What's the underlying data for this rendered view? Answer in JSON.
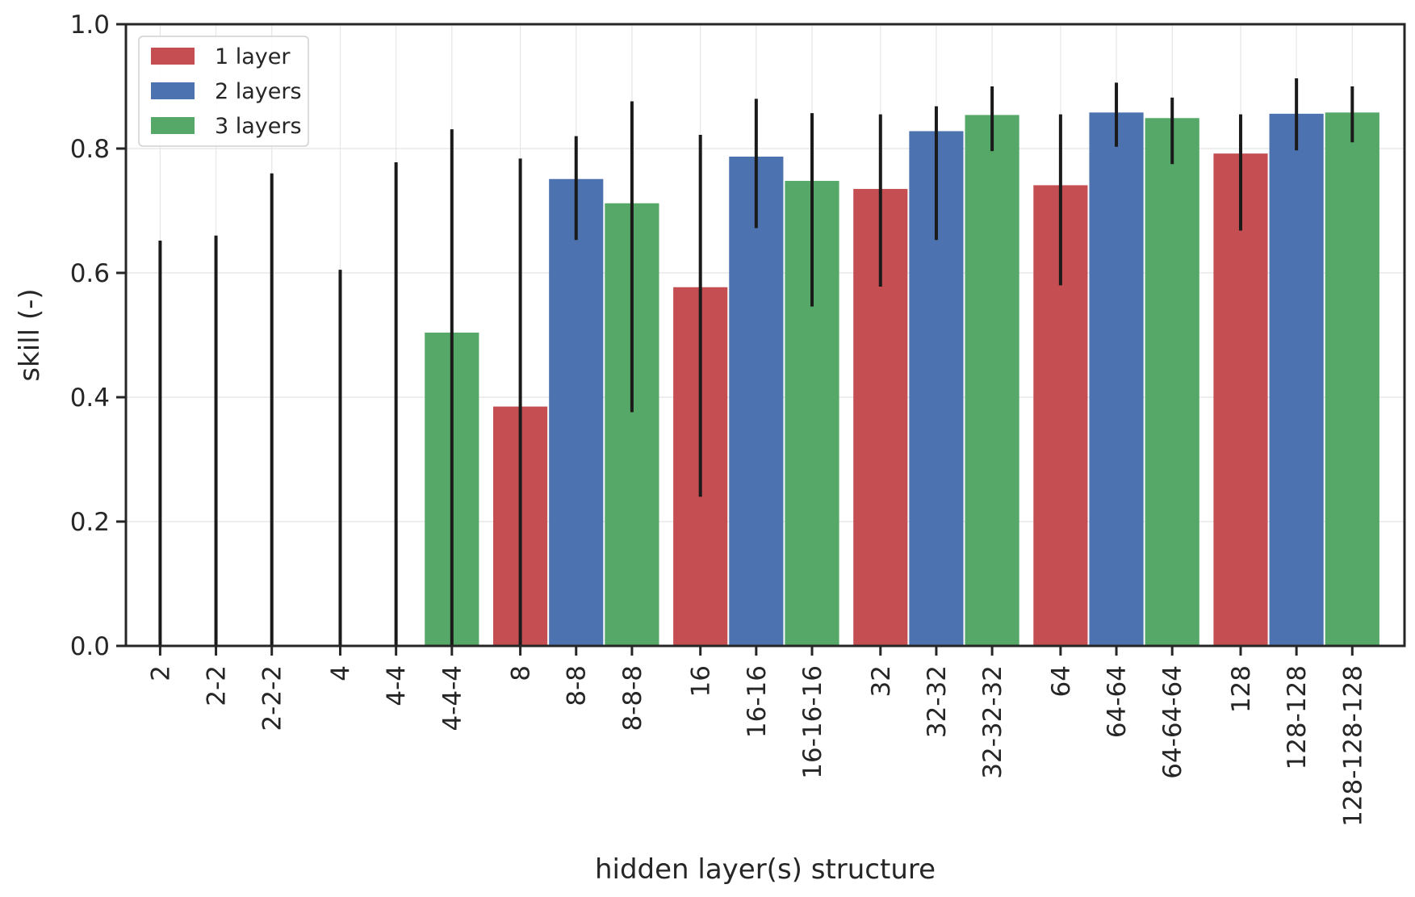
{
  "chart_data": {
    "type": "bar",
    "xlabel": "hidden layer(s) structure",
    "ylabel": "skill (-)",
    "ylim": [
      0,
      1.0
    ],
    "yticks": [
      "0.0",
      "0.2",
      "0.4",
      "0.6",
      "0.8",
      "1.0"
    ],
    "grid": true,
    "legend_position": "top-left",
    "groups": [
      "2",
      "4",
      "8",
      "16",
      "32",
      "64",
      "128"
    ],
    "series": [
      {
        "name": "1 layer",
        "color": "#c44e52",
        "labels": [
          "2",
          "4",
          "8",
          "16",
          "32",
          "64",
          "128"
        ],
        "values": [
          0.0,
          0.0,
          0.385,
          0.577,
          0.735,
          0.741,
          0.792
        ],
        "err_low": [
          0.0,
          0.0,
          0.0,
          0.24,
          0.578,
          0.58,
          0.668
        ],
        "err_high": [
          0.652,
          0.605,
          0.784,
          0.822,
          0.855,
          0.855,
          0.855
        ]
      },
      {
        "name": "2 layers",
        "color": "#4c72b0",
        "labels": [
          "2-2",
          "4-4",
          "8-8",
          "16-16",
          "32-32",
          "64-64",
          "128-128"
        ],
        "values": [
          0.0,
          0.0,
          0.751,
          0.787,
          0.828,
          0.858,
          0.856
        ],
        "err_low": [
          0.0,
          0.0,
          0.653,
          0.672,
          0.653,
          0.803,
          0.797
        ],
        "err_high": [
          0.66,
          0.778,
          0.82,
          0.88,
          0.868,
          0.906,
          0.913
        ]
      },
      {
        "name": "3 layers",
        "color": "#55a868",
        "labels": [
          "2-2-2",
          "4-4-4",
          "8-8-8",
          "16-16-16",
          "32-32-32",
          "64-64-64",
          "128-128-128"
        ],
        "values": [
          0.0,
          0.504,
          0.712,
          0.748,
          0.854,
          0.849,
          0.858
        ],
        "err_low": [
          0.0,
          0.0,
          0.376,
          0.546,
          0.796,
          0.775,
          0.81
        ],
        "err_high": [
          0.76,
          0.831,
          0.876,
          0.857,
          0.9,
          0.882,
          0.9
        ]
      }
    ]
  }
}
